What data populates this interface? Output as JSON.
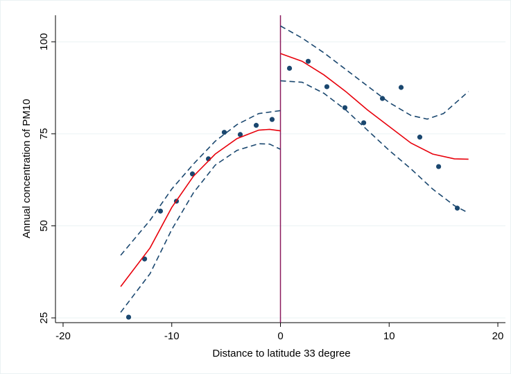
{
  "chart_data": {
    "type": "scatter",
    "xlabel": "Distance to latitude 33 degree",
    "ylabel": "Annual concentration of PM10",
    "xlim": [
      -20.7,
      20.7
    ],
    "ylim": [
      23.7,
      107.2
    ],
    "xticks": [
      -20,
      -10,
      0,
      10,
      20
    ],
    "yticks": [
      25,
      50,
      75,
      100
    ],
    "grid": true,
    "reference_line": {
      "x": 0,
      "color": "#8b1a5e"
    },
    "series": [
      {
        "style": "markers",
        "color": "#1a476f",
        "x": [
          -13.97,
          -12.5,
          -11.04,
          -9.57,
          -8.1,
          -6.63,
          -5.17,
          -3.7,
          -2.23,
          -0.77,
          0.83,
          2.55,
          4.27,
          5.93,
          7.66,
          9.38,
          11.1,
          12.82,
          14.55,
          16.27
        ],
        "values": [
          25.2,
          41.0,
          54.0,
          56.7,
          64.1,
          68.2,
          75.4,
          74.8,
          77.3,
          78.9,
          92.8,
          94.7,
          87.8,
          82.1,
          78.0,
          84.6,
          87.6,
          74.1,
          66.1,
          54.8
        ]
      },
      {
        "style": "solid",
        "color": "#e8000b",
        "x": [
          -14.7,
          -12,
          -10,
          -8,
          -6,
          -4,
          -2,
          -1,
          0
        ],
        "values": [
          33.5,
          44,
          55,
          63.5,
          69.5,
          73.7,
          76,
          76.2,
          75.8
        ]
      },
      {
        "style": "solid",
        "color": "#e8000b",
        "x": [
          0,
          2,
          4,
          6,
          8,
          10,
          12,
          14,
          16,
          17.3
        ],
        "values": [
          96.8,
          94.7,
          91,
          86.5,
          81.5,
          77,
          72.5,
          69.5,
          68.2,
          68.1
        ]
      },
      {
        "style": "dashed",
        "color": "#1a476f",
        "x": [
          -14.7,
          -12,
          -10,
          -8,
          -6,
          -4,
          -2,
          0
        ],
        "values": [
          42,
          51.5,
          60,
          66.8,
          73,
          77.5,
          80.5,
          81.3
        ]
      },
      {
        "style": "dashed",
        "color": "#1a476f",
        "x": [
          -14.7,
          -12,
          -10,
          -8,
          -6,
          -4,
          -2,
          -1,
          0
        ],
        "values": [
          26.5,
          37,
          49,
          59,
          66.5,
          70.5,
          72.3,
          72.2,
          70.8
        ]
      },
      {
        "style": "dashed",
        "color": "#1a476f",
        "x": [
          0,
          2,
          4,
          6,
          8,
          10,
          12,
          13.5,
          15,
          17.3
        ],
        "values": [
          104.3,
          101,
          97,
          92.5,
          88,
          83.5,
          80,
          79,
          80.5,
          86.5
        ]
      },
      {
        "style": "dashed",
        "color": "#1a476f",
        "x": [
          0,
          2,
          4,
          6,
          8,
          10,
          12,
          14,
          16,
          17.3
        ],
        "values": [
          89.4,
          89,
          86,
          81.5,
          76,
          70.5,
          65.5,
          60,
          55.5,
          53.5
        ]
      }
    ]
  }
}
